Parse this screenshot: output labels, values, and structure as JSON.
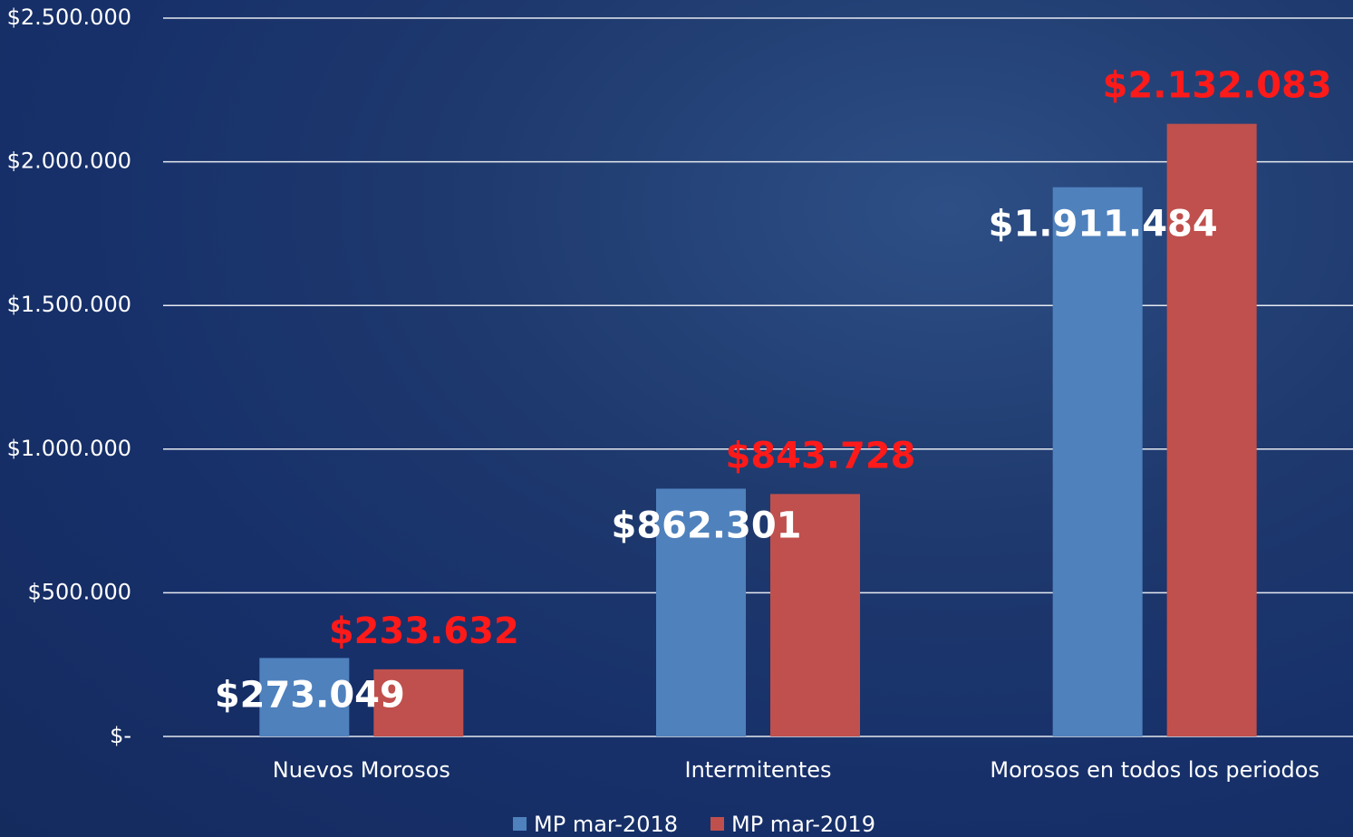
{
  "chart_data": {
    "type": "bar",
    "categories": [
      "Nuevos Morosos",
      "Intermitentes",
      "Morosos en todos los periodos"
    ],
    "series": [
      {
        "name": "MP mar-2018",
        "color": "#4f81bd",
        "label_color": "#ffffff",
        "values": [
          273049,
          862301,
          1911484
        ],
        "value_labels": [
          "$273.049",
          "$862.301",
          "$1.911.484"
        ]
      },
      {
        "name": "MP mar-2019",
        "color": "#c0504d",
        "label_color": "#ff1a1a",
        "values": [
          233632,
          843728,
          2132083
        ],
        "value_labels": [
          "$233.632",
          "$843.728",
          "$2.132.083"
        ]
      }
    ],
    "ylim": [
      0,
      2500000
    ],
    "yticks": [
      {
        "value": 0,
        "label": "$-"
      },
      {
        "value": 500000,
        "label": "$500.000"
      },
      {
        "value": 1000000,
        "label": "$1.000.000"
      },
      {
        "value": 1500000,
        "label": "$1.500.000"
      },
      {
        "value": 2000000,
        "label": "$2.000.000"
      },
      {
        "value": 2500000,
        "label": "$2.500.000"
      }
    ],
    "grid": true,
    "legend": "bottom"
  }
}
